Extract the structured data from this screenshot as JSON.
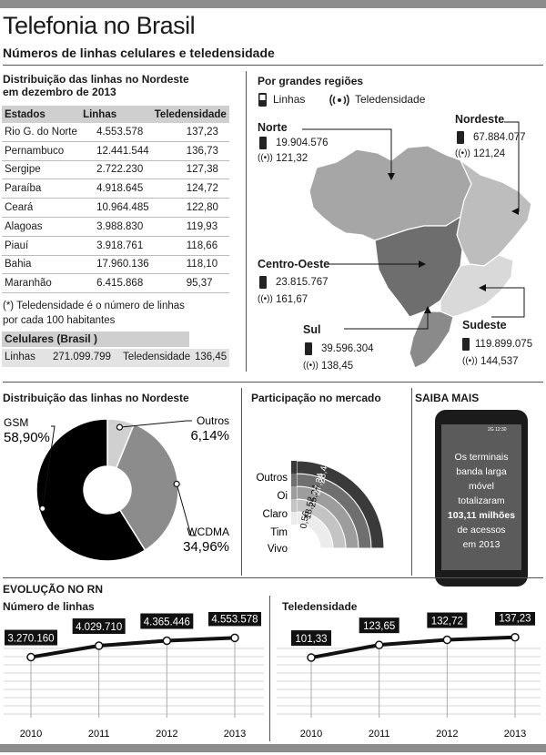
{
  "header": {
    "title": "Telefonia no Brasil",
    "subtitle": "Números de linhas celulares e teledensidade"
  },
  "nordeste_table": {
    "title_line1": "Distribuição das linhas no Nordeste",
    "title_line2": "em dezembro de 2013",
    "columns": [
      "Estados",
      "Linhas",
      "Teledensidade"
    ],
    "rows": [
      [
        "Rio G. do Norte",
        "4.553.578",
        "137,23"
      ],
      [
        "Pernambuco",
        "12.441.544",
        "136,73"
      ],
      [
        "Sergipe",
        "2.722.230",
        "127,38"
      ],
      [
        "Paraíba",
        "4.918.645",
        "124,72"
      ],
      [
        "Ceará",
        "10.964.485",
        "122,80"
      ],
      [
        "Alagoas",
        "3.988.830",
        "119,93"
      ],
      [
        "Piauí",
        "3.918.761",
        "118,66"
      ],
      [
        "Bahia",
        "17.960.136",
        "118,10"
      ],
      [
        "Maranhão",
        "6.415.868",
        "95,37"
      ]
    ],
    "note_line1": "(*) Teledensidade é o número de linhas",
    "note_line2": "por cada 100 habitantes"
  },
  "celulares_brasil": {
    "title": "Celulares (Brasil )",
    "linhas_label": "Linhas",
    "linhas_value": "271.099.799",
    "teledensidade_label": "Teledensidade",
    "teledensidade_value": "136,45"
  },
  "regions_map": {
    "title": "Por grandes regiões",
    "legend_linhas": "Linhas",
    "legend_teledensidade": "Teledensidade",
    "regions": [
      {
        "name": "Norte",
        "linhas": "19.904.576",
        "teledensidade": "121,32",
        "color": "#a6a6a6"
      },
      {
        "name": "Nordeste",
        "linhas": "67.884.077",
        "teledensidade": "121,24",
        "color": "#bdbdbd"
      },
      {
        "name": "Centro-Oeste",
        "linhas": "23.815.767",
        "teledensidade": "161,67",
        "color": "#6e6e6e"
      },
      {
        "name": "Sul",
        "linhas": "39.596.304",
        "teledensidade": "138,45",
        "color": "#8a8a8a"
      },
      {
        "name": "Sudeste",
        "linhas": "119.899.075",
        "teledensidade": "144,537",
        "color": "#d9d9d9"
      }
    ]
  },
  "chart_data": [
    {
      "type": "pie",
      "title": "Distribuição das linhas no Nordeste",
      "categories": [
        "GSM",
        "WCDMA",
        "Outros"
      ],
      "values": [
        58.9,
        34.96,
        6.14
      ],
      "labels": [
        "58,90%",
        "34,96%",
        "6,14%"
      ],
      "colors": [
        "#000000",
        "#8c8c8c",
        "#d0d0d0"
      ]
    },
    {
      "type": "bar",
      "title": "Participação no mercado",
      "categories": [
        "Outros",
        "Oi",
        "Claro",
        "Tim",
        "Vivo"
      ],
      "values": [
        0.56,
        18.52,
        25.34,
        27.34,
        28.49
      ],
      "labels": [
        "0,56",
        "18,52",
        "25,34",
        "27,34",
        "28,49"
      ],
      "colors": [
        "#ececec",
        "#c4c4c4",
        "#9d9d9d",
        "#6f6f6f",
        "#3a3a3a"
      ]
    },
    {
      "type": "line",
      "title": "Número de linhas",
      "x": [
        "2010",
        "2011",
        "2012",
        "2013"
      ],
      "values": [
        3270160,
        4029710,
        4365446,
        4553578
      ],
      "labels": [
        "3.270.160",
        "4.029.710",
        "4.365.446",
        "4.553.578"
      ]
    },
    {
      "type": "line",
      "title": "Teledensidade",
      "x": [
        "2010",
        "2011",
        "2012",
        "2013"
      ],
      "values": [
        101.33,
        123.65,
        132.72,
        137.23
      ],
      "labels": [
        "101,33",
        "123,65",
        "132,72",
        "137,23"
      ]
    }
  ],
  "evolucao": {
    "title": "EVOLUÇÃO NO RN"
  },
  "saiba_mais": {
    "title": "SAIBA MAIS",
    "phone_status": "2G",
    "phone_time": "12:30",
    "text_lines": [
      "Os terminais",
      "banda larga",
      "móvel",
      "totalizaram"
    ],
    "highlight": "103,11 milhões",
    "text_tail": [
      "de acessos",
      "em 2013"
    ]
  }
}
